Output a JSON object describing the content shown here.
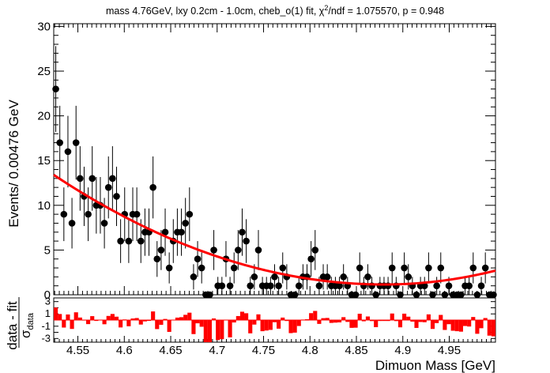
{
  "chart_data": {
    "type": "scatter",
    "title": "mass 4.76GeV, lxy 0.2cm - 1.0cm, cheb_o(1) fit, χ²/ndf = 1.075570, p = 0.948",
    "title_parts": {
      "before": "mass 4.76GeV, lxy 0.2cm - 1.0cm, cheb_o(1) fit, χ",
      "sup": "2",
      "after": "/ndf = 1.075570, p = 0.948"
    },
    "xlabel": "Dimuon Mass [GeV]",
    "ylabel": "Events/ 0.00476 GeV",
    "pull_ylabel": {
      "numerator": "data - fit",
      "denominator": "σ",
      "sub": "data"
    },
    "xlim": [
      4.524,
      4.9998
    ],
    "ylim": [
      0,
      30.3
    ],
    "pull_ylim": [
      -3.6,
      3.6
    ],
    "x_ticks": [
      "4.55",
      "4.6",
      "4.65",
      "4.7",
      "4.75",
      "4.8",
      "4.85",
      "4.9",
      "4.95"
    ],
    "y_ticks": [
      "0",
      "5",
      "10",
      "15",
      "20",
      "25",
      "30"
    ],
    "pull_ticks": [
      "3",
      "1",
      "-1",
      "-3"
    ],
    "colors": {
      "data": "#000000",
      "fit": "#ff0000",
      "pull": "#ff0000"
    },
    "data_points": [
      23,
      17,
      9,
      16,
      8,
      17,
      13,
      11,
      9,
      13,
      10,
      10,
      8,
      12,
      13,
      11,
      6,
      9,
      6,
      9,
      9,
      6,
      7,
      7,
      12,
      4,
      5,
      7,
      3,
      6,
      7,
      7,
      8,
      9,
      2,
      4,
      3,
      0,
      0,
      5,
      1,
      1,
      4,
      1,
      3,
      5,
      7,
      6,
      1,
      2,
      5,
      1,
      1,
      1,
      2,
      1,
      3,
      2,
      0,
      0,
      1,
      2,
      2,
      4,
      5,
      1,
      2,
      2,
      1,
      1,
      1,
      2,
      1,
      0,
      0,
      3,
      1,
      2,
      1,
      0,
      1,
      1,
      1,
      3,
      1,
      0,
      3,
      2,
      1,
      0,
      1,
      1,
      3,
      0,
      1,
      3,
      0,
      1,
      0,
      0,
      0,
      1,
      1,
      3,
      0,
      1,
      3,
      0,
      0
    ],
    "fit_curve": {
      "y_at_xmin": 13.4,
      "y_min": 1.15,
      "x_at_min": 4.88,
      "y_at_xmax": 2.7
    }
  }
}
